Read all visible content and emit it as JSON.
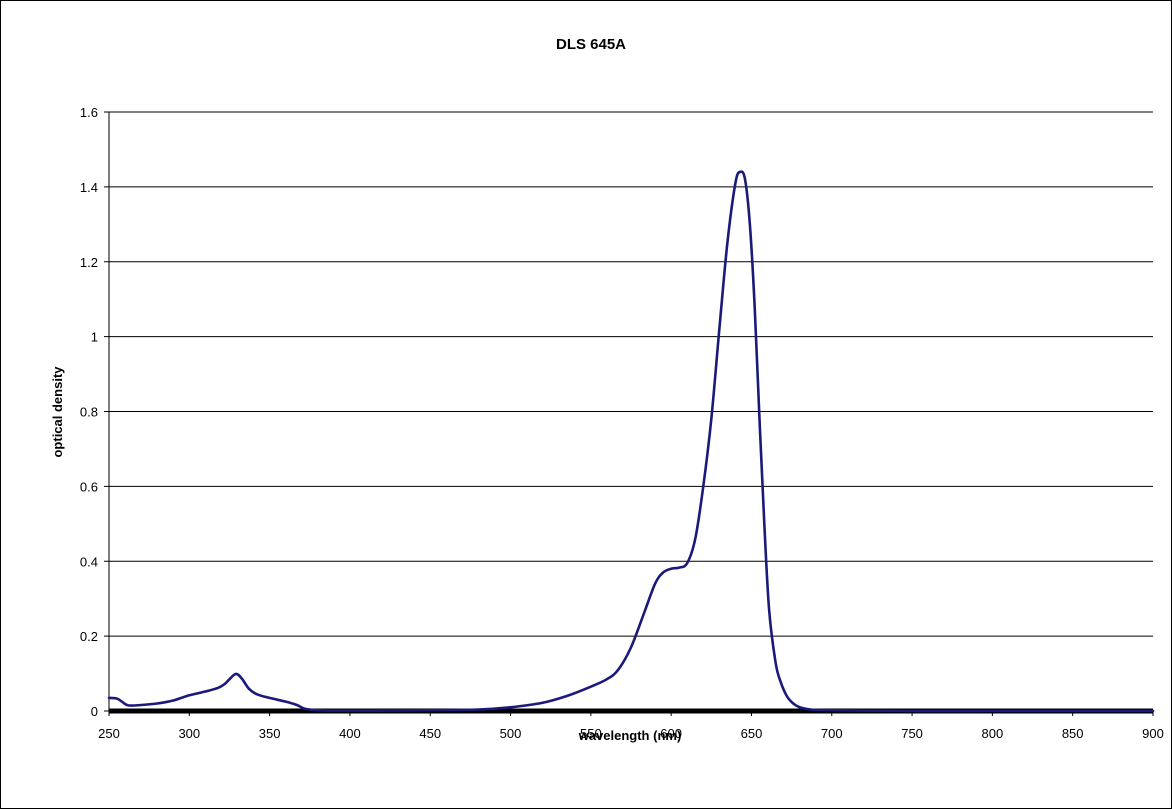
{
  "chart_data": {
    "type": "line",
    "title": "DLS 645A",
    "xlabel": "wavelength (nm)",
    "ylabel": "optical density",
    "xlim": [
      250,
      900
    ],
    "ylim": [
      0,
      1.6
    ],
    "xticks": [
      "250",
      "300",
      "350",
      "400",
      "450",
      "500",
      "550",
      "600",
      "650",
      "700",
      "750",
      "800",
      "850",
      "900"
    ],
    "yticks": [
      "0",
      "0.2",
      "0.4",
      "0.6",
      "0.8",
      "1",
      "1.2",
      "1.4",
      "1.6"
    ],
    "grid": "horizontal",
    "legend": "none",
    "series": [
      {
        "color": "#1a1a7a",
        "x": [
          250,
          255,
          258,
          262,
          270,
          280,
          290,
          300,
          310,
          318,
          322,
          325,
          328,
          330,
          333,
          337,
          342,
          350,
          360,
          367,
          372,
          380,
          400,
          450,
          480,
          500,
          520,
          535,
          550,
          560,
          567,
          575,
          583,
          590,
          595,
          600,
          605,
          610,
          615,
          620,
          625,
          630,
          635,
          640,
          643,
          646,
          649,
          652,
          655,
          658,
          661,
          665,
          668,
          672,
          676,
          680,
          685,
          690,
          700,
          720,
          750,
          800,
          900
        ],
        "y": [
          0.035,
          0.033,
          0.025,
          0.015,
          0.016,
          0.02,
          0.028,
          0.042,
          0.052,
          0.062,
          0.072,
          0.085,
          0.097,
          0.098,
          0.085,
          0.06,
          0.045,
          0.035,
          0.025,
          0.016,
          0.006,
          0.002,
          0.001,
          0.002,
          0.004,
          0.01,
          0.022,
          0.04,
          0.065,
          0.085,
          0.11,
          0.17,
          0.26,
          0.34,
          0.37,
          0.38,
          0.383,
          0.395,
          0.46,
          0.6,
          0.78,
          1.02,
          1.25,
          1.41,
          1.44,
          1.42,
          1.3,
          1.08,
          0.78,
          0.5,
          0.27,
          0.13,
          0.08,
          0.04,
          0.02,
          0.01,
          0.005,
          0.003,
          0.002,
          0.001,
          0.0,
          0.0,
          0.0
        ]
      }
    ]
  }
}
